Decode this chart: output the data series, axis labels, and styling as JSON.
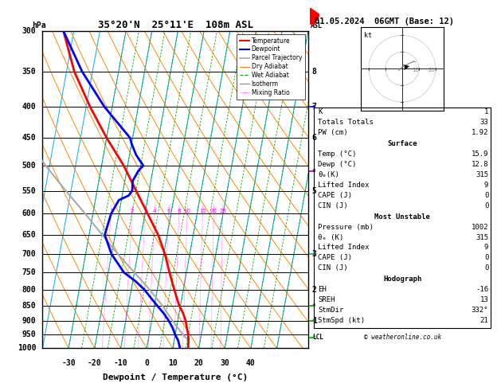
{
  "title_main": "35°20'N  25°11'E  108m ASL",
  "date_title": "01.05.2024  06GMT (Base: 12)",
  "xlabel": "Dewpoint / Temperature (°C)",
  "ylabel_left": "hPa",
  "temp_color": "#ff0000",
  "dewp_color": "#0000ff",
  "parcel_color": "#aaaaaa",
  "dry_adiabat_color": "#ff8800",
  "wet_adiabat_color": "#00aa00",
  "isotherm_color": "#00aaff",
  "mixing_ratio_color": "#ff00ff",
  "pressure_ticks": [
    300,
    350,
    400,
    450,
    500,
    550,
    600,
    650,
    700,
    750,
    800,
    850,
    900,
    950,
    1000
  ],
  "temp_ticks": [
    -30,
    -20,
    -10,
    0,
    10,
    20,
    30,
    40
  ],
  "temperature_profile": {
    "pressure": [
      1000,
      970,
      950,
      925,
      900,
      875,
      850,
      825,
      800,
      775,
      750,
      700,
      650,
      600,
      550,
      500,
      450,
      400,
      350,
      300
    ],
    "temp": [
      15.9,
      15.5,
      15.0,
      14.0,
      13.0,
      11.5,
      9.5,
      8.0,
      6.5,
      5.0,
      3.5,
      0.5,
      -3.5,
      -9.0,
      -15.0,
      -21.5,
      -30.0,
      -38.5,
      -47.0,
      -54.0
    ]
  },
  "dewpoint_profile": {
    "pressure": [
      1000,
      970,
      950,
      925,
      900,
      875,
      850,
      825,
      800,
      775,
      750,
      700,
      650,
      600,
      570,
      560,
      550,
      530,
      510,
      500,
      480,
      460,
      450,
      400,
      350,
      300
    ],
    "dewp": [
      12.8,
      11.5,
      10.0,
      8.5,
      6.5,
      4.0,
      1.0,
      -2.0,
      -5.0,
      -9.0,
      -14.0,
      -20.0,
      -24.0,
      -23.0,
      -21.0,
      -17.5,
      -16.5,
      -17.0,
      -15.5,
      -14.0,
      -17.5,
      -20.0,
      -21.0,
      -33.0,
      -44.0,
      -54.0
    ]
  },
  "parcel_profile": {
    "pressure": [
      970,
      950,
      925,
      900,
      875,
      850,
      800,
      750,
      700,
      650,
      600,
      550,
      500,
      450,
      400,
      350,
      300
    ],
    "temp": [
      15.5,
      13.0,
      10.5,
      8.0,
      5.5,
      3.0,
      -3.0,
      -10.0,
      -17.5,
      -25.0,
      -33.0,
      -42.0,
      -51.5,
      -61.0,
      -70.5,
      -80.0,
      -89.0
    ]
  },
  "mixing_ratio_values": [
    1,
    2,
    3,
    4,
    6,
    8,
    10,
    15,
    20,
    25
  ],
  "km_labels": [
    [
      350,
      "8"
    ],
    [
      400,
      "7"
    ],
    [
      450,
      "6"
    ],
    [
      550,
      "5"
    ],
    [
      700,
      "3"
    ],
    [
      800,
      "2"
    ],
    [
      900,
      "1"
    ]
  ],
  "lcl_pressure": 960,
  "copyright": "© weatheronline.co.uk"
}
